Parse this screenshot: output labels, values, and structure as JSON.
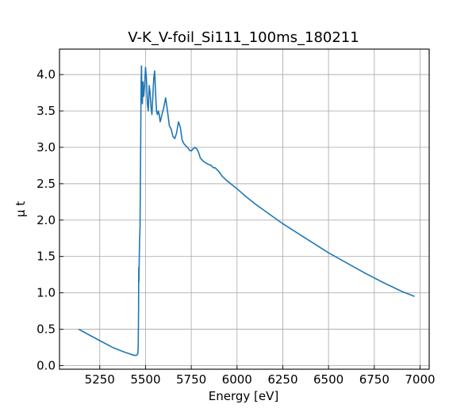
{
  "chart_data": {
    "type": "line",
    "title": "V-K_V-foil_Si111_100ms_180211",
    "xlabel": "Energy [eV]",
    "ylabel": "μ t",
    "xlim": [
      5030,
      7050
    ],
    "ylim": [
      -0.05,
      4.35
    ],
    "xticks": [
      5250,
      5500,
      5750,
      6000,
      6250,
      6500,
      6750,
      7000
    ],
    "yticks": [
      0.0,
      0.5,
      1.0,
      1.5,
      2.0,
      2.5,
      3.0,
      3.5,
      4.0
    ],
    "xtick_labels": [
      "5250",
      "5500",
      "5750",
      "6000",
      "6250",
      "6500",
      "6750",
      "7000"
    ],
    "ytick_labels": [
      "0.0",
      "0.5",
      "1.0",
      "1.5",
      "2.0",
      "2.5",
      "3.0",
      "3.5",
      "4.0"
    ],
    "grid": true,
    "color": "#1f77b4",
    "series": [
      {
        "x": [
          5135,
          5200,
          5260,
          5320,
          5380,
          5420,
          5440,
          5450,
          5455,
          5458,
          5460,
          5462,
          5463,
          5464,
          5464.5,
          5466,
          5468,
          5470,
          5472,
          5474,
          5476,
          5478,
          5480,
          5483,
          5486,
          5490,
          5495,
          5500,
          5505,
          5510,
          5515,
          5520,
          5525,
          5530,
          5535,
          5540,
          5545,
          5550,
          5555,
          5560,
          5565,
          5570,
          5575,
          5580,
          5590,
          5600,
          5610,
          5620,
          5630,
          5640,
          5650,
          5660,
          5670,
          5680,
          5690,
          5700,
          5710,
          5720,
          5730,
          5740,
          5750,
          5760,
          5770,
          5780,
          5790,
          5800,
          5820,
          5840,
          5860,
          5870,
          5880,
          5900,
          5920,
          5950,
          6000,
          6050,
          6100,
          6150,
          6200,
          6250,
          6300,
          6400,
          6500,
          6600,
          6700,
          6800,
          6900,
          6970
        ],
        "y": [
          0.5,
          0.41,
          0.33,
          0.25,
          0.19,
          0.155,
          0.14,
          0.14,
          0.15,
          0.17,
          0.25,
          0.75,
          1.35,
          1.15,
          1.25,
          1.5,
          1.75,
          1.9,
          2.55,
          3.2,
          3.9,
          4.12,
          3.75,
          3.6,
          3.9,
          3.7,
          3.85,
          4.1,
          3.95,
          3.6,
          3.5,
          3.85,
          3.75,
          3.55,
          3.45,
          3.7,
          3.95,
          4.05,
          3.75,
          3.5,
          3.45,
          3.5,
          3.45,
          3.35,
          3.45,
          3.55,
          3.68,
          3.5,
          3.3,
          3.25,
          3.15,
          3.12,
          3.2,
          3.35,
          3.28,
          3.1,
          3.05,
          3.02,
          3.0,
          2.96,
          2.95,
          2.98,
          3.0,
          2.98,
          2.93,
          2.85,
          2.8,
          2.77,
          2.75,
          2.72,
          2.72,
          2.67,
          2.6,
          2.53,
          2.43,
          2.32,
          2.22,
          2.13,
          2.04,
          1.95,
          1.87,
          1.71,
          1.55,
          1.41,
          1.27,
          1.14,
          1.02,
          0.95
        ]
      }
    ]
  }
}
